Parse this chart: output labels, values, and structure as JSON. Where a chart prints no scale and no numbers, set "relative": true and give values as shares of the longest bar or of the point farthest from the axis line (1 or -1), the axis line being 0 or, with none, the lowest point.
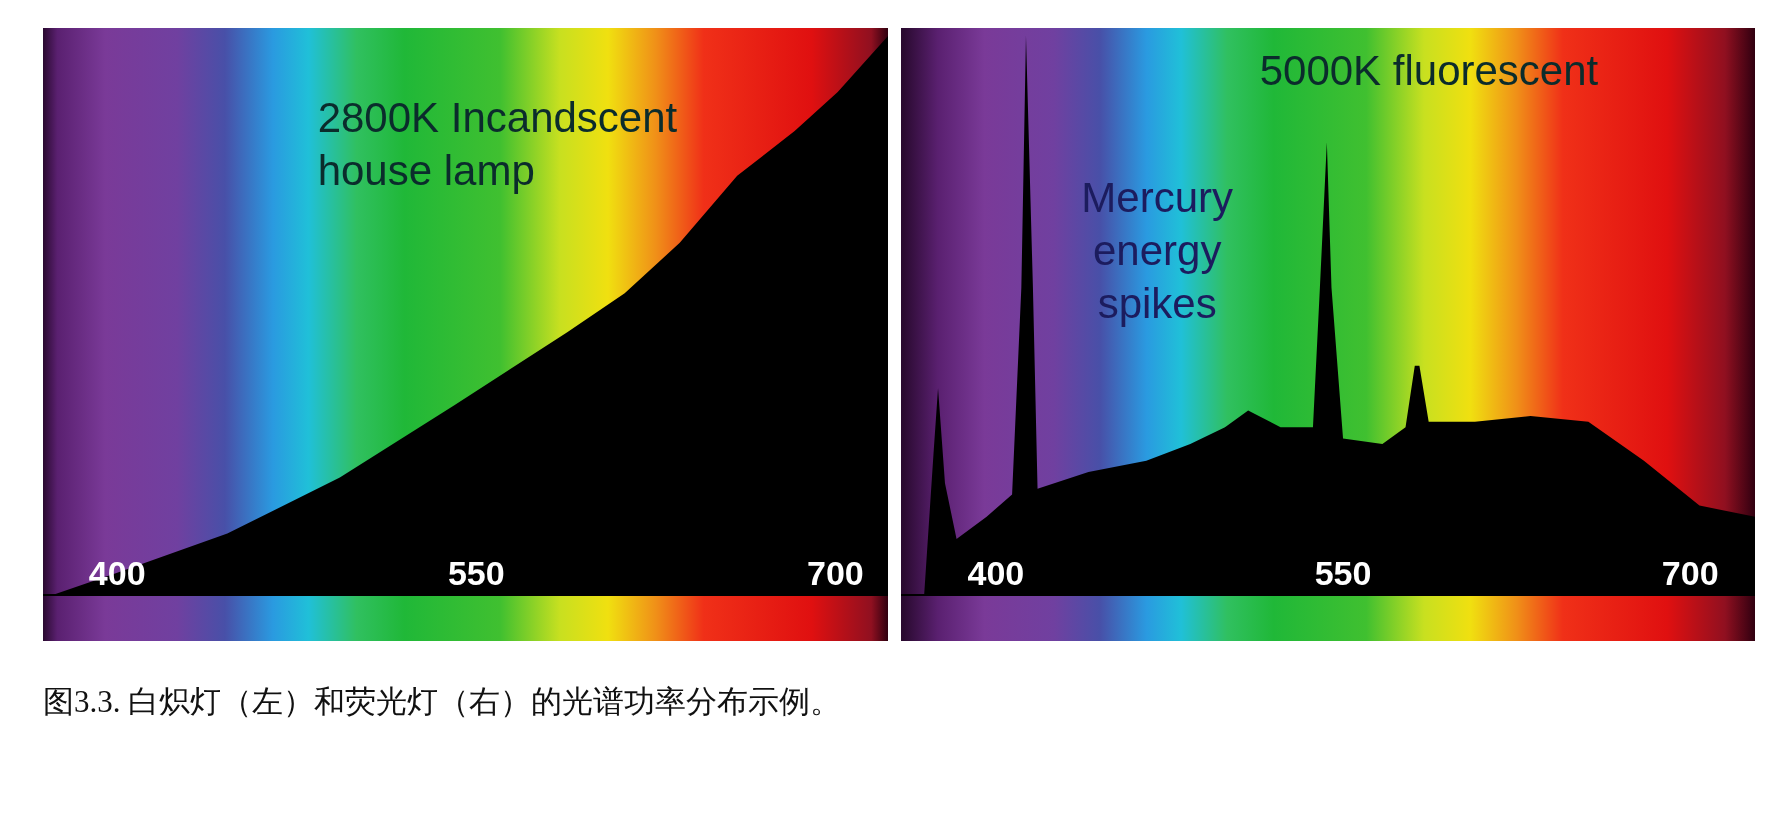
{
  "chart_data": [
    {
      "type": "area",
      "relative": true,
      "tick_labels": "x",
      "xlim": [
        369,
        722
      ],
      "xticks": [
        400,
        550,
        700
      ],
      "x": [
        373,
        400,
        446,
        493,
        541,
        588,
        612,
        635,
        659,
        683,
        701,
        722
      ],
      "series": [
        {
          "color": "#000000",
          "values": [
            0,
            0.04,
            0.11,
            0.21,
            0.34,
            0.47,
            0.54,
            0.63,
            0.75,
            0.83,
            0.9,
            1.0
          ]
        }
      ],
      "annotations": [
        "2800K Incandscent\nhouse lamp"
      ]
    },
    {
      "type": "area",
      "relative": true,
      "tick_labels": "x",
      "xlim": [
        359,
        728
      ],
      "xticks": [
        400,
        550,
        700
      ],
      "x": [
        369,
        373,
        375,
        378,
        383,
        396,
        407,
        411,
        413,
        416,
        418,
        440,
        465,
        484,
        499,
        509,
        523,
        537,
        540,
        543,
        545,
        550,
        567,
        577,
        581,
        583,
        587,
        607,
        631,
        656,
        680,
        704,
        728
      ],
      "series": [
        {
          "color": "#000000",
          "values": [
            0,
            0.25,
            0.37,
            0.2,
            0.1,
            0.14,
            0.18,
            0.55,
            1.0,
            0.55,
            0.19,
            0.22,
            0.24,
            0.27,
            0.3,
            0.33,
            0.3,
            0.3,
            0.55,
            0.81,
            0.55,
            0.28,
            0.27,
            0.3,
            0.41,
            0.41,
            0.31,
            0.31,
            0.32,
            0.31,
            0.24,
            0.16,
            0.14
          ]
        }
      ],
      "annotations": [
        "5000K fluorescent",
        "Mercury\nenergy\nspikes"
      ]
    },
    {
      "type": "other",
      "annotations": [
        "图3.3. 白炽灯（左）和荧光灯（右）的光谱功率分布示例。"
      ]
    }
  ]
}
